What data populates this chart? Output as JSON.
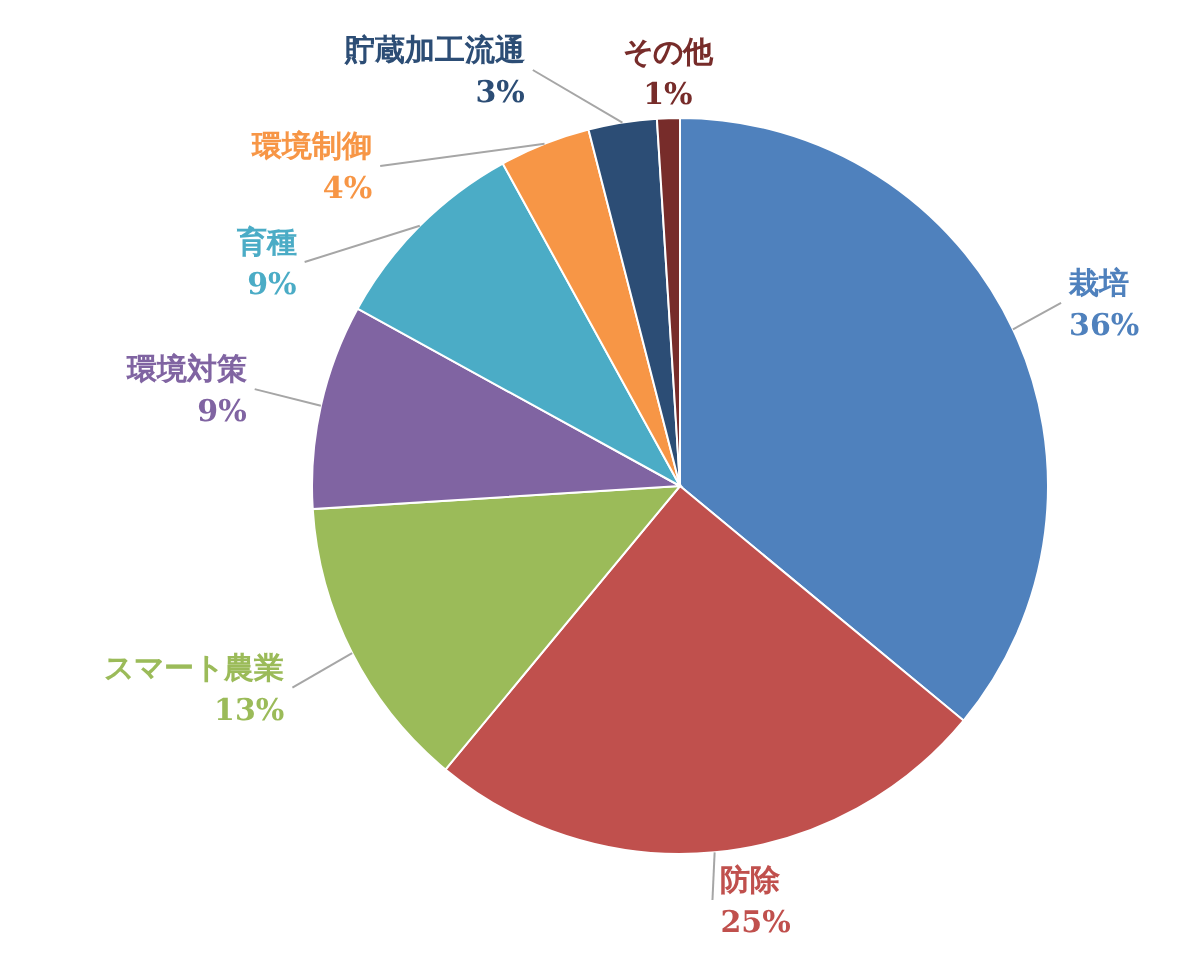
{
  "chart_data": {
    "type": "pie",
    "categories": [
      "栽培",
      "防除",
      "スマート農業",
      "環境対策",
      "育種",
      "環境制御",
      "貯蔵加工流通",
      "その他"
    ],
    "values": [
      36,
      25,
      13,
      9,
      9,
      4,
      3,
      1
    ],
    "colors": [
      "#4f81bd",
      "#c0504d",
      "#9bbb59",
      "#8064a2",
      "#4bacc6",
      "#f79646",
      "#2c4d75",
      "#772c2a"
    ],
    "value_labels": [
      "36%",
      "25%",
      "13%",
      "9%",
      "9%",
      "4%",
      "3%",
      "1%"
    ]
  }
}
